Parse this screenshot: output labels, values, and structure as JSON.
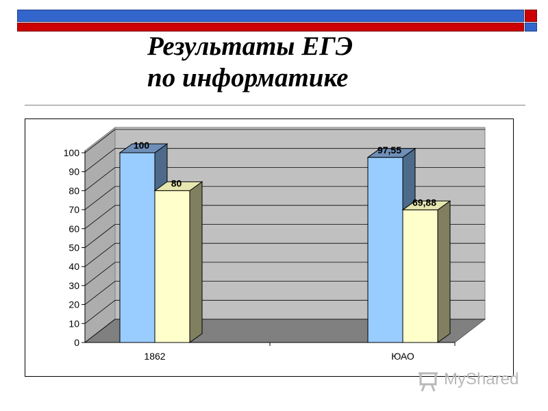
{
  "slide": {
    "title_line1": "Результаты ЕГЭ",
    "title_line2": "по информатике"
  },
  "watermark": {
    "text": "MyShared"
  },
  "colors": {
    "series1": "#99ccff",
    "series2": "#ffffcc",
    "wall": "#c0c0c0",
    "floor": "#808080"
  },
  "chart_data": {
    "type": "bar",
    "categories": [
      "1862",
      "ЮАО"
    ],
    "series": [
      {
        "values": [
          100,
          97.55
        ],
        "labels": [
          "100",
          "97,55"
        ]
      },
      {
        "values": [
          80,
          69.88
        ],
        "labels": [
          "80",
          "69,88"
        ]
      }
    ],
    "y_ticks": [
      "0",
      "10",
      "20",
      "30",
      "40",
      "50",
      "60",
      "70",
      "80",
      "90",
      "100"
    ],
    "ylim": [
      0,
      100
    ],
    "style": "3d-clustered",
    "grid": true,
    "legend": "none"
  }
}
